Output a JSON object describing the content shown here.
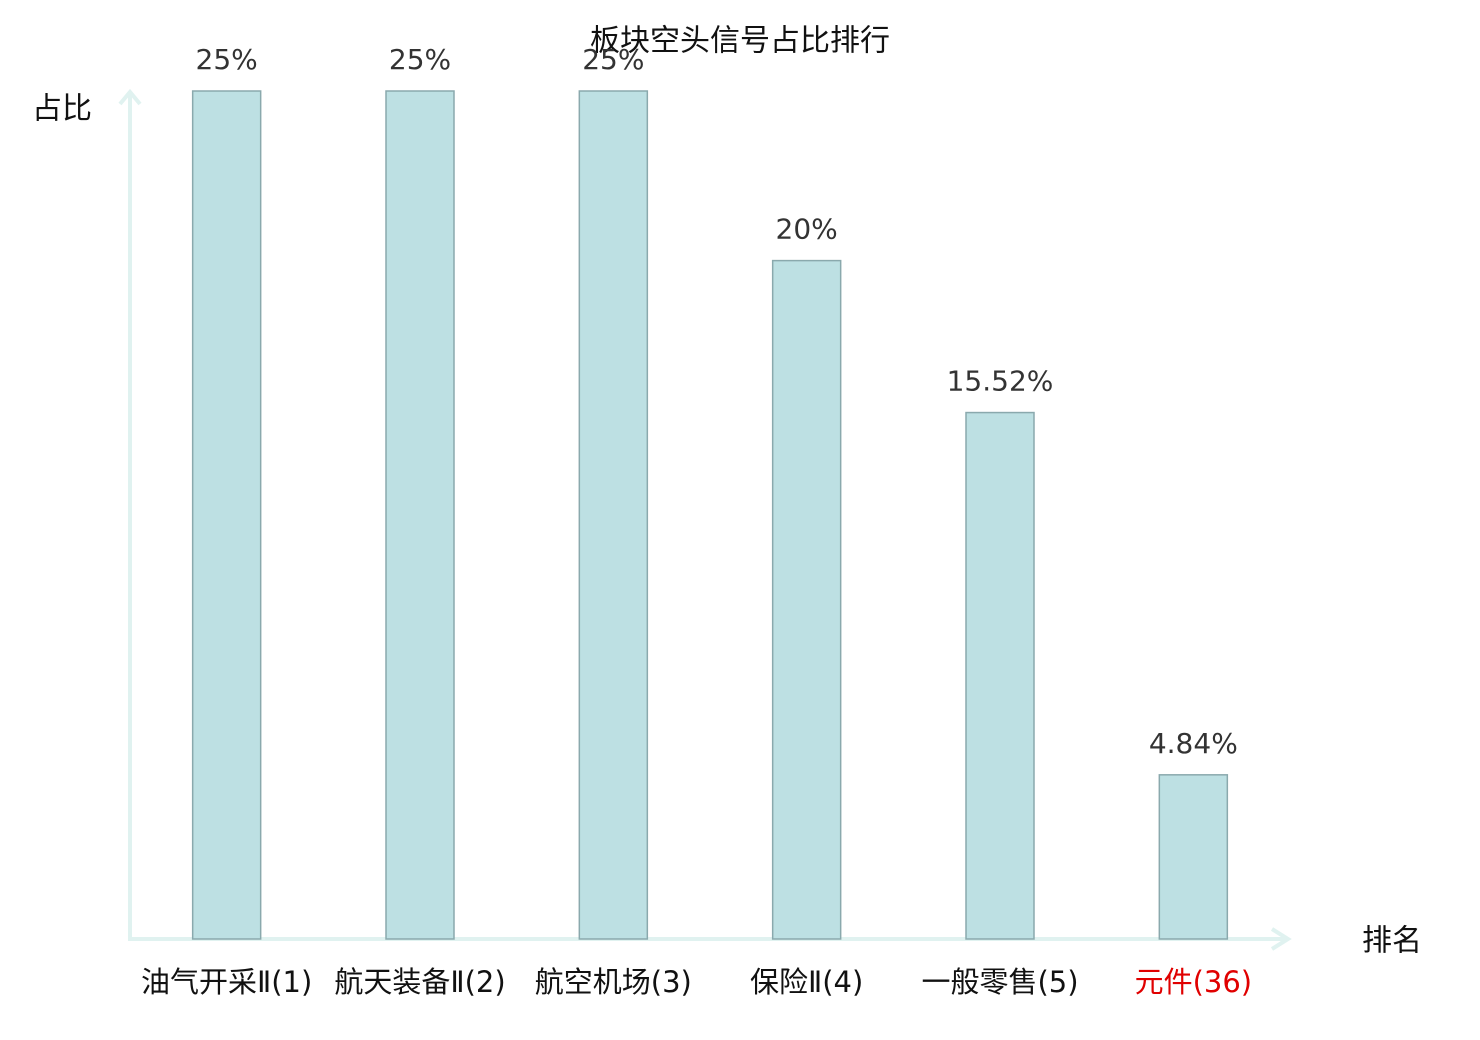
{
  "chart_data": {
    "type": "bar",
    "title": "板块空头信号占比排行",
    "y_label": "占比",
    "x_label": "排名",
    "categories": [
      "油气开采Ⅱ(1)",
      "航天装备Ⅱ(2)",
      "航空机场(3)",
      "保险Ⅱ(4)",
      "一般零售(5)",
      "元件(36)"
    ],
    "category_colors": [
      "#111111",
      "#111111",
      "#111111",
      "#111111",
      "#111111",
      "#e00000"
    ],
    "values": [
      25,
      25,
      25,
      20,
      15.52,
      4.84
    ],
    "value_labels": [
      "25%",
      "25%",
      "25%",
      "20%",
      "15.52%",
      "4.84%"
    ],
    "color": "#bde0e3",
    "edge_color": "#8aa9ad",
    "ylim": [
      0,
      25
    ]
  }
}
